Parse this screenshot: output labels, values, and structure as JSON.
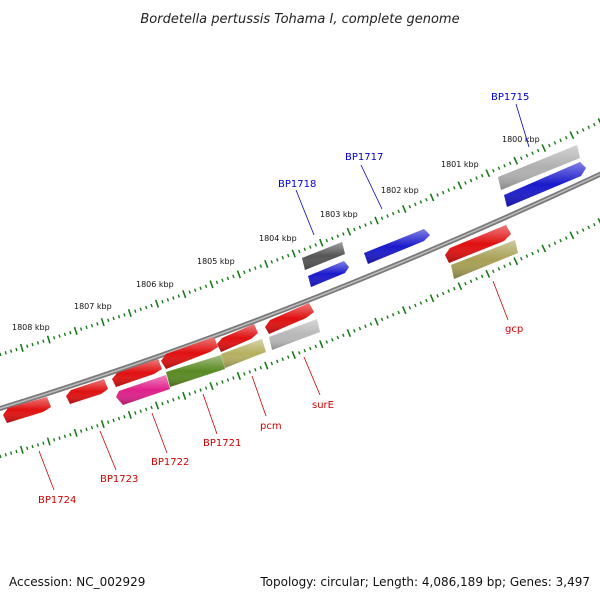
{
  "title": "Bordetella pertussis Tohama I, complete genome",
  "footer": {
    "accession": "Accession: NC_002929",
    "topology": "Topology: circular; Length: 4,086,189 bp; Genes: 3,497"
  },
  "colors": {
    "backbone": "#808080",
    "ticks": "#1a7a1a",
    "label_top": "#0000cc",
    "label_bottom": "#cc0000"
  },
  "kbp_labels": [
    "1800 kbp",
    "1801 kbp",
    "1802 kbp",
    "1803 kbp",
    "1804 kbp",
    "1805 kbp",
    "1806 kbp",
    "1807 kbp",
    "1808 kbp"
  ],
  "genes": [
    {
      "id": "bp1715-strip",
      "color": "#b0b0b0",
      "label": ""
    },
    {
      "id": "bp1715",
      "color": "#1a1acc",
      "label": "BP1715"
    },
    {
      "id": "bp1717",
      "color": "#1a1acc",
      "label": "BP1717"
    },
    {
      "id": "bp1718-strip",
      "color": "#555555",
      "label": ""
    },
    {
      "id": "bp1718",
      "color": "#1a1acc",
      "label": "BP1718"
    },
    {
      "id": "gcp-top",
      "color": "#e01010",
      "label": ""
    },
    {
      "id": "gcp",
      "color": "#a8a055",
      "label": "gcp"
    },
    {
      "id": "surE-top",
      "color": "#e01010",
      "label": ""
    },
    {
      "id": "surE",
      "color": "#b8b8b8",
      "label": "surE"
    },
    {
      "id": "pcm-top",
      "color": "#e01010",
      "label": ""
    },
    {
      "id": "pcm",
      "color": "#b5b060",
      "label": "pcm"
    },
    {
      "id": "bp1721-top",
      "color": "#e01010",
      "label": ""
    },
    {
      "id": "bp1721",
      "color": "#5a8a22",
      "label": "BP1721"
    },
    {
      "id": "bp1722-top",
      "color": "#e01010",
      "label": ""
    },
    {
      "id": "bp1722",
      "color": "#e0208a",
      "label": "BP1722"
    },
    {
      "id": "bp1723",
      "color": "#e01010",
      "label": "BP1723"
    },
    {
      "id": "bp1724",
      "color": "#e01010",
      "label": "BP1724"
    }
  ]
}
